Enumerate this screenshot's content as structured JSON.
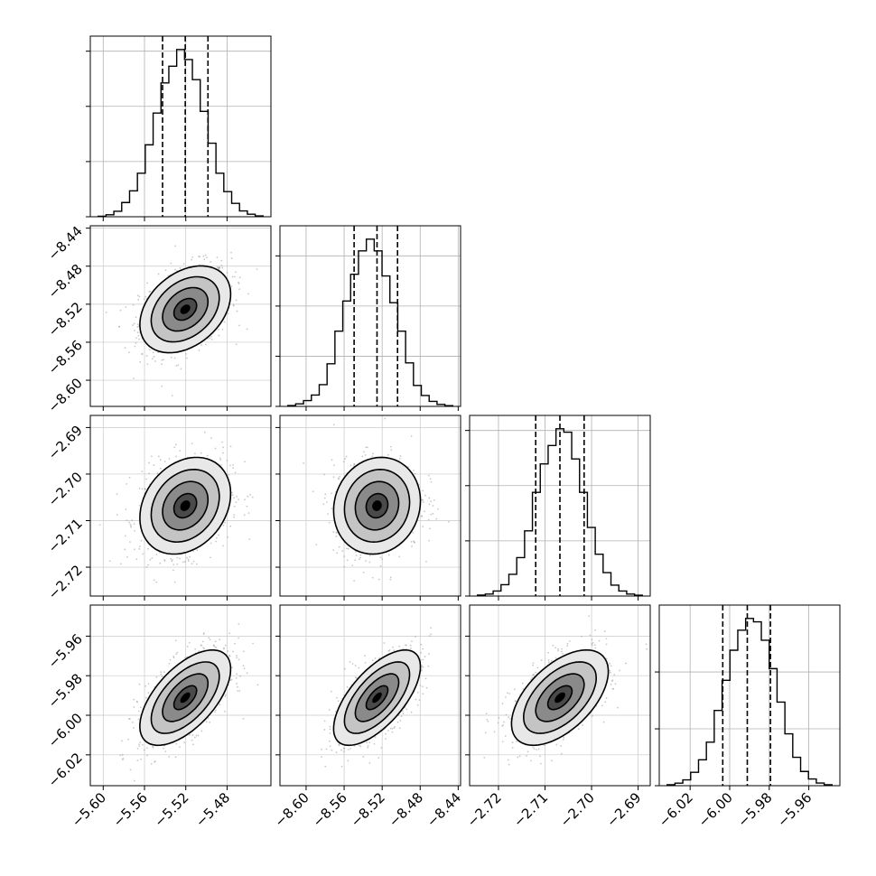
{
  "chart_data": {
    "type": "corner",
    "parameters": [
      {
        "range": [
          -5.6125,
          -5.4375
        ],
        "ticks": [
          -5.6,
          -5.56,
          -5.52,
          -5.48
        ],
        "tick_labels": [
          "−5.60",
          "−5.56",
          "−5.52",
          "−5.48"
        ],
        "quantiles": [
          -5.5425,
          -5.5205,
          -5.4985
        ],
        "hist_values": [
          0.3,
          1.2,
          3.3,
          8.5,
          15.5,
          26.0,
          43.0,
          62.0,
          80.0,
          90.0,
          100.0,
          94.0,
          82.0,
          63.0,
          44.0,
          26.0,
          15.0,
          8.0,
          3.5,
          1.5,
          0.5
        ],
        "hist_yticks": [
          0,
          33,
          66,
          99
        ]
      },
      {
        "range": [
          -8.6275,
          -8.4375
        ],
        "ticks": [
          -8.6,
          -8.56,
          -8.52,
          -8.48,
          -8.44
        ],
        "tick_labels": [
          "−8.60",
          "−8.56",
          "−8.52",
          "−8.48",
          "−8.44"
        ],
        "quantiles": [
          -8.5495,
          -8.5254,
          -8.5038
        ],
        "hist_values": [
          0.5,
          1.5,
          3.5,
          6.8,
          13.0,
          25.5,
          45.0,
          63.0,
          79.0,
          93.0,
          100.0,
          93.0,
          78.0,
          62.0,
          45.0,
          26.0,
          12.5,
          6.5,
          3.0,
          1.2,
          0.4
        ],
        "hist_yticks": [
          0,
          30,
          60,
          90
        ]
      },
      {
        "range": [
          -2.7262,
          -2.6874
        ],
        "ticks": [
          -2.72,
          -2.71,
          -2.7,
          -2.69
        ],
        "tick_labels": [
          "−2.72",
          "−2.71",
          "−2.70",
          "−2.69"
        ],
        "quantiles": [
          -2.712,
          -2.7068,
          -2.7016
        ],
        "hist_values": [
          0.6,
          1.2,
          3.0,
          6.8,
          13.0,
          23.0,
          39.0,
          62.0,
          79.0,
          90.0,
          100.0,
          98.0,
          82.0,
          62.0,
          41.0,
          25.0,
          14.0,
          6.5,
          3.0,
          1.2,
          0.5
        ],
        "hist_yticks": [
          0,
          33,
          66,
          99
        ]
      },
      {
        "range": [
          -6.0356,
          -5.9443
        ],
        "ticks": [
          -6.02,
          -6.0,
          -5.98,
          -5.96
        ],
        "tick_labels": [
          "−6.02",
          "−6.00",
          "−5.98",
          "−5.96"
        ],
        "quantiles": [
          -6.0035,
          -5.9911,
          -5.9794
        ],
        "hist_values": [
          0.6,
          1.5,
          3.5,
          8.0,
          15.5,
          26.0,
          45.0,
          63.0,
          81.0,
          93.0,
          100.0,
          98.0,
          87.0,
          70.0,
          50.0,
          31.0,
          17.0,
          8.5,
          4.0,
          1.6,
          0.6
        ],
        "hist_yticks": [
          0,
          34,
          68
        ]
      }
    ],
    "correlations": [
      [
        1.0,
        0.35,
        0.25,
        0.6
      ],
      [
        0.35,
        1.0,
        0.1,
        0.65
      ],
      [
        0.25,
        0.1,
        1.0,
        0.55
      ],
      [
        0.6,
        0.65,
        0.55,
        1.0
      ]
    ],
    "contour_levels_sigma": [
      0.5,
      1.0,
      1.5,
      2.0
    ],
    "grid": true,
    "xlabel": "",
    "ylabel": "",
    "title": ""
  }
}
